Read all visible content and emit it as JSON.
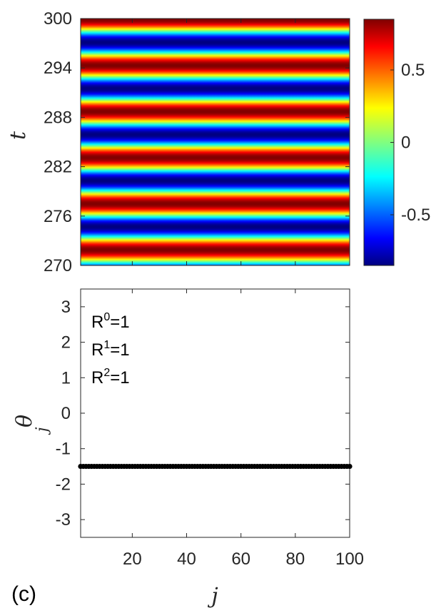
{
  "chart_data": [
    {
      "type": "heatmap",
      "title": "",
      "xlabel": "",
      "ylabel": "t",
      "x_range": [
        1,
        100
      ],
      "ylim": [
        270,
        300
      ],
      "y_ticks": [
        "300",
        "294",
        "288",
        "282",
        "276",
        "270"
      ],
      "z_description": "values vary only along t (horizontal bands)",
      "period_t": 5.6,
      "bands_dark_red_t": [
        271.9,
        277.5,
        283.1,
        288.7,
        294.3
      ],
      "bands_dark_blue_t": [
        274.7,
        280.3,
        285.9,
        291.5,
        297.1
      ],
      "colorbar": {
        "colormap": "jet",
        "range": [
          -0.85,
          0.85
        ],
        "ticks": [
          "0.5",
          "0",
          "-0.5"
        ]
      }
    },
    {
      "type": "scatter",
      "title": "",
      "xlabel": "j",
      "ylabel": "θ",
      "ylabel_sub": "j",
      "xlim": [
        1,
        100
      ],
      "ylim": [
        -3.5,
        3.5
      ],
      "x_ticks": [
        "20",
        "40",
        "60",
        "80",
        "100"
      ],
      "y_ticks": [
        "3",
        "2",
        "1",
        "0",
        "-1",
        "-2",
        "-3"
      ],
      "series": [
        {
          "x_start": 1,
          "x_end": 100,
          "count": 100,
          "y": -1.5,
          "color": "#000000"
        }
      ],
      "annotations": [
        {
          "base": "R",
          "sup": "0",
          "value": "=1"
        },
        {
          "base": "R",
          "sup": "1",
          "value": "=1"
        },
        {
          "base": "R",
          "sup": "2",
          "value": "=1"
        }
      ]
    }
  ],
  "panel_label": "(c)"
}
